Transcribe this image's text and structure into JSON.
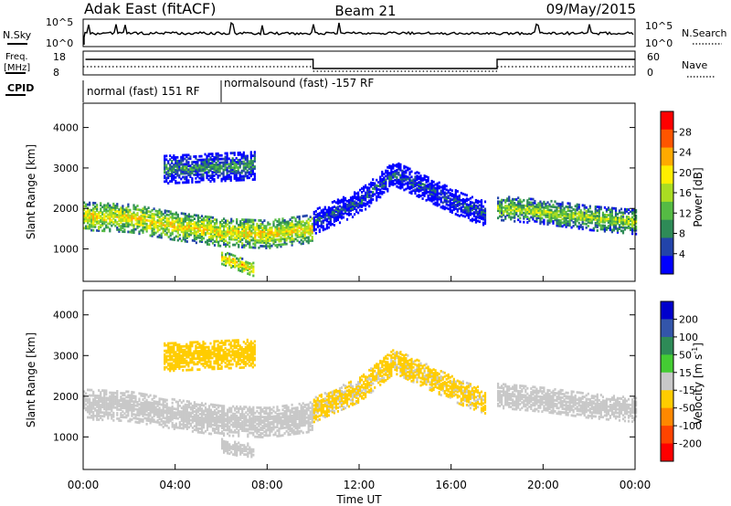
{
  "header": {
    "station": "Adak East (fitACF)",
    "beam": "Beam 21",
    "date": "09/May/2015"
  },
  "top_panels": {
    "nsky_label": "N.Sky",
    "nsky_ticks": [
      "10^5",
      "10^0"
    ],
    "nsearch_label": "N.Search",
    "nsearch_ticks": [
      "10^5",
      "10^0"
    ],
    "freq_label_1": "Freq.",
    "freq_label_2": "[MHz]",
    "freq_ticks": [
      "18",
      "8"
    ],
    "nave_label": "Nave",
    "nave_ticks": [
      "60",
      "0"
    ],
    "cpid_label": "CPID",
    "cpid_segments": [
      {
        "label": "normal (fast) 151 RF",
        "start_hour": 0,
        "end_hour": 6
      },
      {
        "label": "normalsound (fast) -157 RF",
        "start_hour": 6,
        "end_hour": 24
      }
    ],
    "freq_steps": [
      {
        "start_hour": 0.1,
        "end_hour": 10.0,
        "level": "high"
      },
      {
        "start_hour": 10.0,
        "end_hour": 18.0,
        "level": "low"
      },
      {
        "start_hour": 18.0,
        "end_hour": 24.0,
        "level": "high"
      }
    ]
  },
  "colors": {
    "power_scale": [
      "#0000ff",
      "#2244aa",
      "#2e8b57",
      "#55bb44",
      "#aadd22",
      "#ffee00",
      "#ffaa00",
      "#ff5500",
      "#ff0000"
    ],
    "velocity_scale": [
      "#0000cc",
      "#3355aa",
      "#2e8b57",
      "#44cc33",
      "#c8c8c8",
      "#ffcc00",
      "#ff8800",
      "#ff4400",
      "#ff0000"
    ]
  },
  "chart_data": [
    {
      "type": "heatmap",
      "name": "power-panel",
      "ylabel": "Slant Range [km]",
      "yticks": [
        "4000",
        "3000",
        "2000",
        "1000"
      ],
      "ylim": [
        200,
        4600
      ],
      "colorbar_label": "Power [dB]",
      "colorbar_ticks": [
        "28",
        "24",
        "20",
        "16",
        "12",
        "8",
        "4"
      ],
      "color_range": [
        0,
        32
      ],
      "bands": [
        {
          "t": [
            0,
            2,
            4,
            6,
            8,
            10
          ],
          "r": [
            1850,
            1800,
            1600,
            1450,
            1400,
            1550
          ],
          "w": 350,
          "v": 20
        },
        {
          "t": [
            10,
            12,
            13.5,
            15,
            16.5,
            17.5
          ],
          "r": [
            1700,
            2200,
            2900,
            2500,
            2100,
            1900
          ],
          "w": 300,
          "v": 6
        },
        {
          "t": [
            18,
            20,
            22,
            24
          ],
          "r": [
            2050,
            1950,
            1800,
            1700
          ],
          "w": 300,
          "v": 16
        },
        {
          "t": [
            6,
            6.8,
            7.4
          ],
          "r": [
            820,
            650,
            520
          ],
          "w": 160,
          "v": 22
        },
        {
          "t": [
            3.5,
            7.5
          ],
          "r": [
            3000,
            3100
          ],
          "w": 350,
          "v": 10
        }
      ]
    },
    {
      "type": "heatmap",
      "name": "velocity-panel",
      "ylabel": "Slant Range [km]",
      "yticks": [
        "4000",
        "3000",
        "2000",
        "1000"
      ],
      "ylim": [
        200,
        4600
      ],
      "colorbar_label": "Velocity [m s",
      "colorbar_label_sup": "-1",
      "colorbar_label_end": "]",
      "colorbar_ticks": [
        "200",
        "100",
        "50",
        "15",
        "-15",
        "-50",
        "-100",
        "-200"
      ],
      "color_range": [
        -250,
        250
      ],
      "bands": [
        {
          "t": [
            0,
            2,
            4,
            6,
            8,
            10
          ],
          "r": [
            1850,
            1800,
            1600,
            1450,
            1400,
            1550
          ],
          "w": 380,
          "v": 0
        },
        {
          "t": [
            10,
            12,
            13.5,
            15,
            16.5,
            17.5
          ],
          "r": [
            1700,
            2200,
            2900,
            2500,
            2100,
            1900
          ],
          "w": 300,
          "v": -40
        },
        {
          "t": [
            18,
            20,
            22,
            24
          ],
          "r": [
            2050,
            1950,
            1800,
            1700
          ],
          "w": 300,
          "v": 0
        },
        {
          "t": [
            6,
            6.8,
            7.4
          ],
          "r": [
            820,
            720,
            700
          ],
          "w": 160,
          "v": 0
        },
        {
          "t": [
            3.5,
            7.5
          ],
          "r": [
            3000,
            3100
          ],
          "w": 350,
          "v": -60
        }
      ]
    }
  ],
  "x_axis": {
    "ticks": [
      "00:00",
      "04:00",
      "08:00",
      "12:00",
      "16:00",
      "20:00",
      "00:00"
    ],
    "title": "Time UT"
  }
}
